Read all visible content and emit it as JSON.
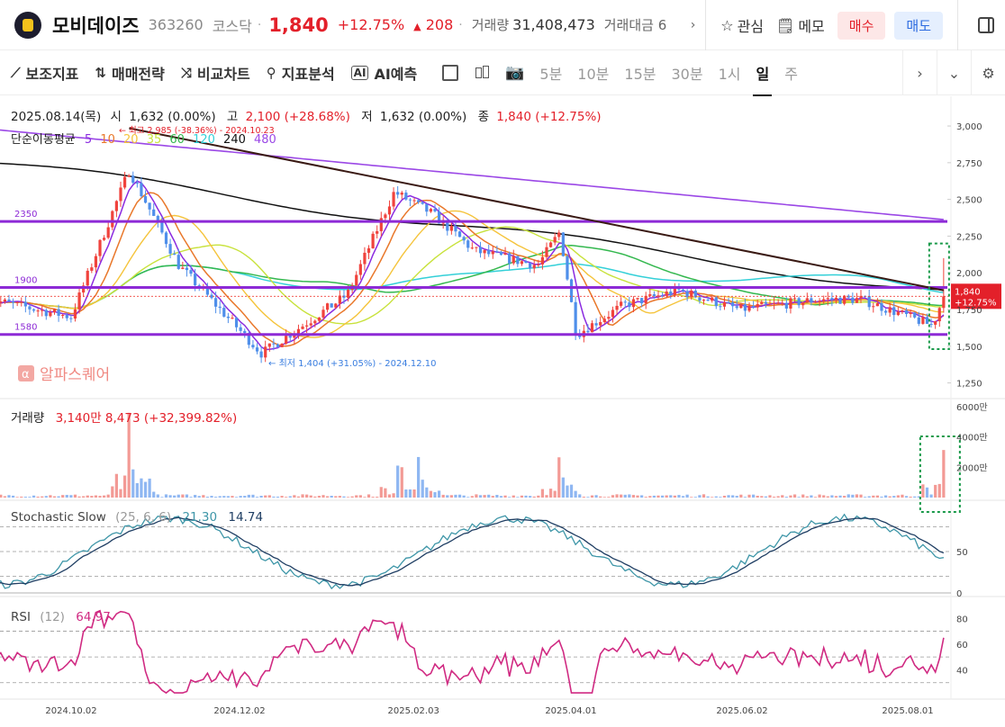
{
  "header": {
    "name": "모비데이즈",
    "code": "363260",
    "market": "코스닥",
    "price": "1,840",
    "change_pct": "+12.75%",
    "change_abs": "208",
    "volume_label": "거래량",
    "volume": "31,408,473",
    "amount_label": "거래대금 6",
    "watch_label": "관심",
    "memo_label": "메모",
    "buy_label": "매수",
    "sell_label": "매도"
  },
  "toolbar": {
    "indicators": "보조지표",
    "strategy": "매매전략",
    "compare": "비교차트",
    "analysis": "지표분석",
    "ai": "AI예측",
    "timeframes": [
      "5분",
      "10분",
      "15분",
      "30분",
      "1시",
      "일",
      "주"
    ],
    "active_timeframe": "일"
  },
  "info": {
    "date": "2025.08.14(목)",
    "open_label": "시",
    "open": "1,632 (0.00%)",
    "high_label": "고",
    "high": "2,100 (+28.68%)",
    "low_label": "저",
    "low": "1,632 (0.00%)",
    "close_label": "종",
    "close": "1,840 (+12.75%)",
    "ma_label": "단순이동평균",
    "ma_periods": [
      "5",
      "10",
      "20",
      "35",
      "60",
      "120",
      "240",
      "480"
    ],
    "high_note": "최고 2,985 (-38.36%) - 2024.10.23",
    "low_note": "최저 1,404 (+31.05%) - 2024.12.10",
    "brand": "알파스퀘어"
  },
  "colors": {
    "up": "#f0433d",
    "down": "#4f8fea",
    "purple": "#8d2ad6",
    "ma5": "#8b2be0",
    "ma10": "#e9782b",
    "ma20": "#f5c43c",
    "ma35": "#c8e23c",
    "ma60": "#34b84f",
    "ma120": "#34d0d8",
    "ma240": "#111111",
    "ma480": "#9b48e6",
    "stoch_k": "#3e96a8",
    "stoch_d": "#1f3e63",
    "rsi": "#d02a82"
  },
  "chart_data": [
    {
      "type": "candlestick",
      "title": "",
      "x_ticks": [
        "2024.10.02",
        "2024.12.02",
        "2025.02.03",
        "2025.04.01",
        "2025.06.02",
        "2025.08.01"
      ],
      "y_ticks": [
        1250,
        1500,
        1750,
        2000,
        2250,
        2500,
        2750,
        3000
      ],
      "ylim": [
        1180,
        3080
      ],
      "moving_averages": [
        "5",
        "10",
        "20",
        "35",
        "60",
        "120",
        "240",
        "480"
      ],
      "horizontal_lines": [
        {
          "label": "2350",
          "value": 2350
        },
        {
          "label": "1900",
          "value": 1900
        },
        {
          "label": "1580",
          "value": 1580
        }
      ],
      "trendline": {
        "from": {
          "x": "2024.10.23",
          "y": 2985
        },
        "to": {
          "x": "2025.08.14",
          "y": 1880
        }
      },
      "last": {
        "value": 1840,
        "label": "1,840",
        "change": "+12.75%"
      },
      "key_points": [
        {
          "x": "2024.09.02",
          "y": 1820
        },
        {
          "x": "2024.10.02",
          "y": 1700
        },
        {
          "x": "2024.10.23",
          "y": 2700
        },
        {
          "x": "2024.11.10",
          "y": 2050
        },
        {
          "x": "2024.12.10",
          "y": 1450
        },
        {
          "x": "2025.01.10",
          "y": 1850
        },
        {
          "x": "2025.01.27",
          "y": 2550
        },
        {
          "x": "2025.02.10",
          "y": 2400
        },
        {
          "x": "2025.02.25",
          "y": 2150
        },
        {
          "x": "2025.03.20",
          "y": 2050
        },
        {
          "x": "2025.03.28",
          "y": 2280
        },
        {
          "x": "2025.04.03",
          "y": 1580
        },
        {
          "x": "2025.04.20",
          "y": 1780
        },
        {
          "x": "2025.05.10",
          "y": 1880
        },
        {
          "x": "2025.06.01",
          "y": 1750
        },
        {
          "x": "2025.07.01",
          "y": 1820
        },
        {
          "x": "2025.07.15",
          "y": 1820
        },
        {
          "x": "2025.08.10",
          "y": 1640
        },
        {
          "x": "2025.08.14",
          "y": 1840
        }
      ]
    },
    {
      "type": "bar",
      "title": "거래량",
      "value_label": "3,140만 8,473 (+32,399.82%)",
      "y_ticks": [
        "2000만",
        "4000만",
        "6000만"
      ],
      "ylim": [
        0,
        6000
      ],
      "spikes": [
        {
          "x": "2024.10.23",
          "value": 5800,
          "dir": "up"
        },
        {
          "x": "2024.10.25",
          "value": 1700,
          "dir": "up"
        },
        {
          "x": "2025.01.29",
          "value": 3200,
          "dir": "down"
        },
        {
          "x": "2025.02.05",
          "value": 3000,
          "dir": "down"
        },
        {
          "x": "2025.03.28",
          "value": 3100,
          "dir": "up"
        },
        {
          "x": "2025.08.14",
          "value": 3140,
          "dir": "up"
        }
      ]
    },
    {
      "type": "line",
      "title": "Stochastic Slow",
      "params": "(25, 6, 6)",
      "k_value": "21.30",
      "d_value": "14.74",
      "y_ticks": [
        0,
        50
      ],
      "ylim": [
        0,
        100
      ]
    },
    {
      "type": "line",
      "title": "RSI",
      "params": "(12)",
      "value": "64.97",
      "y_ticks": [
        40,
        60,
        80
      ],
      "ylim": [
        20,
        90
      ]
    }
  ]
}
